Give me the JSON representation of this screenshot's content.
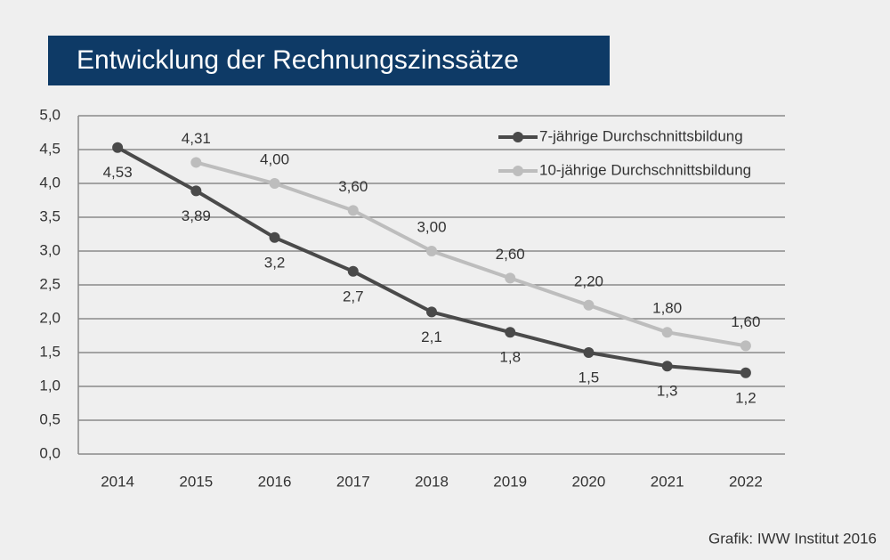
{
  "chart_data": {
    "type": "line",
    "title": "Entwicklung der Rechnungszinssätze",
    "source": "Grafik: IWW Institut 2016",
    "categories": [
      "2014",
      "2015",
      "2016",
      "2017",
      "2018",
      "2019",
      "2020",
      "2021",
      "2022"
    ],
    "series": [
      {
        "name": "7-jährige Durchschnittsbildung",
        "color": "#4a4a4a",
        "values": [
          4.53,
          3.89,
          3.2,
          2.7,
          2.1,
          1.8,
          1.5,
          1.3,
          1.2
        ],
        "value_labels": [
          "4,53",
          "3,89",
          "3,2",
          "2,7",
          "2,1",
          "1,8",
          "1,5",
          "1,3",
          "1,2"
        ]
      },
      {
        "name": "10-jährige Durchschnittsbildung",
        "color": "#bdbdbd",
        "values": [
          null,
          4.31,
          4.0,
          3.6,
          3.0,
          2.6,
          2.2,
          1.8,
          1.6
        ],
        "value_labels": [
          null,
          "4,31",
          "4,00",
          "3,60",
          "3,00",
          "2,60",
          "2,20",
          "1,80",
          "1,60"
        ]
      }
    ],
    "ylim": [
      0,
      5
    ],
    "yticks": [
      {
        "value": 0,
        "label": "0,0"
      },
      {
        "value": 0.5,
        "label": "0,5"
      },
      {
        "value": 1,
        "label": "1,0"
      },
      {
        "value": 1.5,
        "label": "1,5"
      },
      {
        "value": 2,
        "label": "2,0"
      },
      {
        "value": 2.5,
        "label": "2,5"
      },
      {
        "value": 3,
        "label": "3,0"
      },
      {
        "value": 3.5,
        "label": "3,5"
      },
      {
        "value": 4,
        "label": "4,0"
      },
      {
        "value": 4.5,
        "label": "4,5"
      },
      {
        "value": 5,
        "label": "5,0"
      }
    ],
    "grid": true,
    "legend": "top-right"
  }
}
